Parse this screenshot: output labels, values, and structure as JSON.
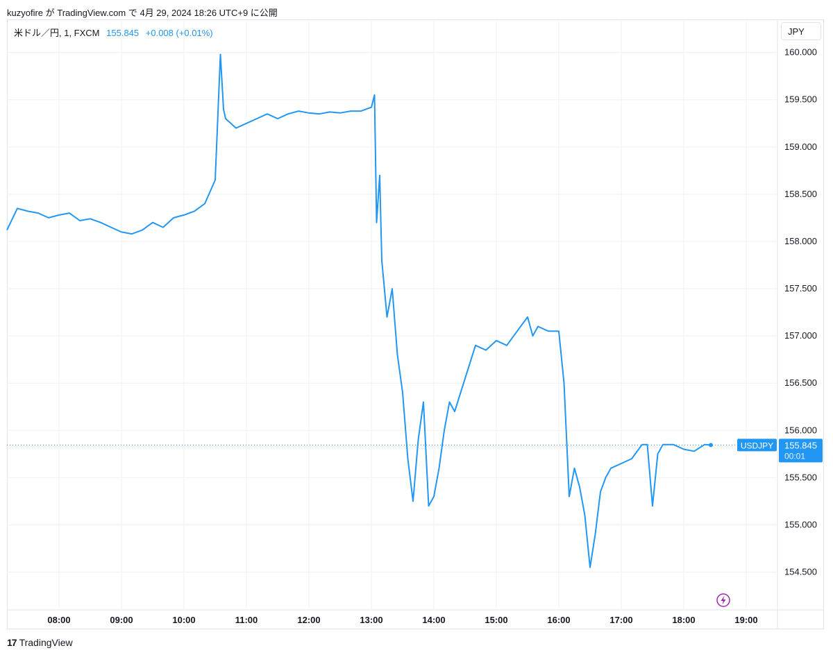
{
  "header": {
    "publish_line": "kuzyofire が TradingView.com で 4月 29, 2024 18:26 UTC+9 に公開"
  },
  "legend": {
    "symbol": "米ドル／円, 1, FXCM",
    "last_price": "155.845",
    "change": "+0.008 (+0.01%)"
  },
  "currency_button": "JPY",
  "price_label": {
    "ticker": "USDJPY",
    "price": "155.845",
    "countdown": "00:01"
  },
  "footer": {
    "brand": "TradingView",
    "brand_mark": "17"
  },
  "colors": {
    "line": "#2196f3",
    "grid": "#eef1f6",
    "text": "#131722",
    "lightning": "#9c27b0"
  },
  "icons": {
    "lightning": "lightning-icon"
  },
  "chart_data": {
    "type": "line",
    "series": [
      {
        "name": "",
        "x": [
          "07:10",
          "07:20",
          "07:30",
          "07:40",
          "07:50",
          "08:00",
          "08:10",
          "08:20",
          "08:30",
          "08:40",
          "08:50",
          "09:00",
          "09:10",
          "09:20",
          "09:30",
          "09:40",
          "09:50",
          "10:00",
          "10:10",
          "10:20",
          "10:30",
          "10:35",
          "10:38",
          "10:40",
          "10:45",
          "10:50",
          "11:00",
          "11:10",
          "11:20",
          "11:30",
          "11:40",
          "11:50",
          "12:00",
          "12:10",
          "12:20",
          "12:30",
          "12:40",
          "12:50",
          "13:00",
          "13:03",
          "13:05",
          "13:08",
          "13:10",
          "13:15",
          "13:20",
          "13:25",
          "13:30",
          "13:35",
          "13:40",
          "13:45",
          "13:50",
          "13:55",
          "14:00",
          "14:05",
          "14:10",
          "14:15",
          "14:20",
          "14:30",
          "14:40",
          "14:50",
          "15:00",
          "15:10",
          "15:20",
          "15:30",
          "15:35",
          "15:40",
          "15:50",
          "16:00",
          "16:05",
          "16:10",
          "16:15",
          "16:20",
          "16:25",
          "16:30",
          "16:35",
          "16:40",
          "16:45",
          "16:50",
          "17:00",
          "17:10",
          "17:20",
          "17:25",
          "17:30",
          "17:35",
          "17:40",
          "17:50",
          "18:00",
          "18:10",
          "18:20",
          "18:26"
        ],
        "y": [
          158.12,
          158.35,
          158.32,
          158.3,
          158.25,
          158.28,
          158.3,
          158.22,
          158.24,
          158.2,
          158.15,
          158.1,
          158.08,
          158.12,
          158.2,
          158.15,
          158.25,
          158.28,
          158.32,
          158.4,
          158.65,
          159.98,
          159.4,
          159.3,
          159.25,
          159.2,
          159.25,
          159.3,
          159.35,
          159.3,
          159.35,
          159.38,
          159.36,
          159.35,
          159.37,
          159.36,
          159.38,
          159.38,
          159.42,
          159.55,
          158.2,
          158.7,
          157.8,
          157.2,
          157.5,
          156.8,
          156.4,
          155.7,
          155.25,
          155.9,
          156.3,
          155.2,
          155.3,
          155.6,
          156.0,
          156.3,
          156.2,
          156.55,
          156.9,
          156.85,
          156.95,
          156.9,
          157.05,
          157.2,
          157.0,
          157.1,
          157.05,
          157.05,
          156.5,
          155.3,
          155.6,
          155.4,
          155.1,
          154.55,
          154.9,
          155.35,
          155.5,
          155.6,
          155.65,
          155.7,
          155.85,
          155.85,
          155.2,
          155.75,
          155.85,
          155.85,
          155.8,
          155.78,
          155.85,
          155.845
        ]
      }
    ],
    "xticks": [
      "08:00",
      "09:00",
      "10:00",
      "11:00",
      "12:00",
      "13:00",
      "14:00",
      "15:00",
      "16:00",
      "17:00",
      "18:00",
      "19:00"
    ],
    "yticks": [
      "154.500",
      "155.000",
      "155.500",
      "156.000",
      "156.500",
      "157.000",
      "157.500",
      "158.000",
      "158.500",
      "159.000",
      "159.500",
      "160.000"
    ],
    "ylim": [
      154.1,
      160.35
    ],
    "xlim": [
      "07:10",
      "19:30"
    ],
    "last_value": 155.845,
    "grid": true
  }
}
